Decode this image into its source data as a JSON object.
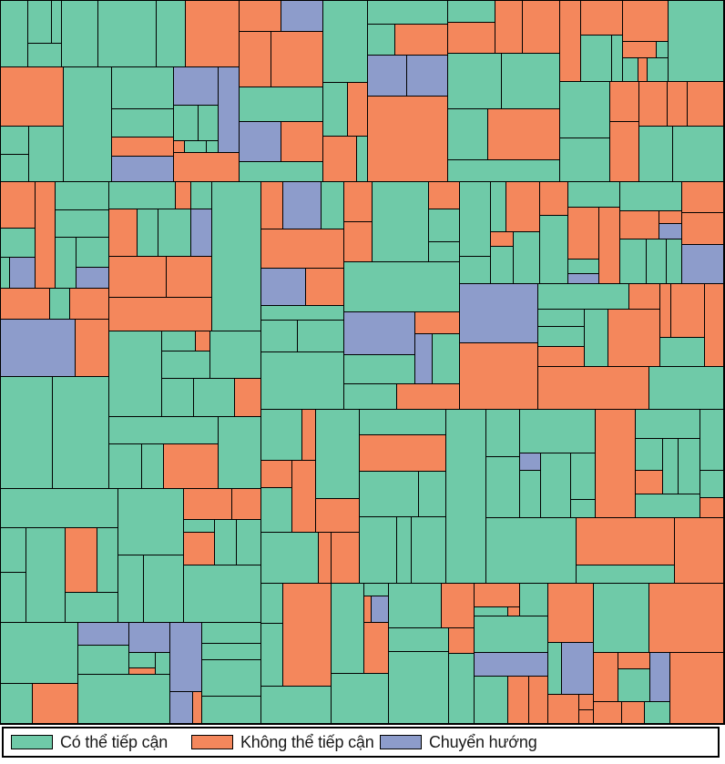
{
  "chart_data": {
    "type": "treemap",
    "title": "",
    "categories": [
      {
        "key": "accessible",
        "label": "Có thể tiếp cận",
        "color": "#6fcaa8"
      },
      {
        "key": "inaccessible",
        "label": "Không thể tiếp cận",
        "color": "#f4875c"
      },
      {
        "key": "redirect",
        "label": "Chuyển hướng",
        "color": "#8d9ccb"
      }
    ],
    "approx_share": {
      "accessible": 0.55,
      "inaccessible": 0.33,
      "redirect": 0.12
    },
    "border_color": "#000000",
    "legend_position": "bottom"
  }
}
